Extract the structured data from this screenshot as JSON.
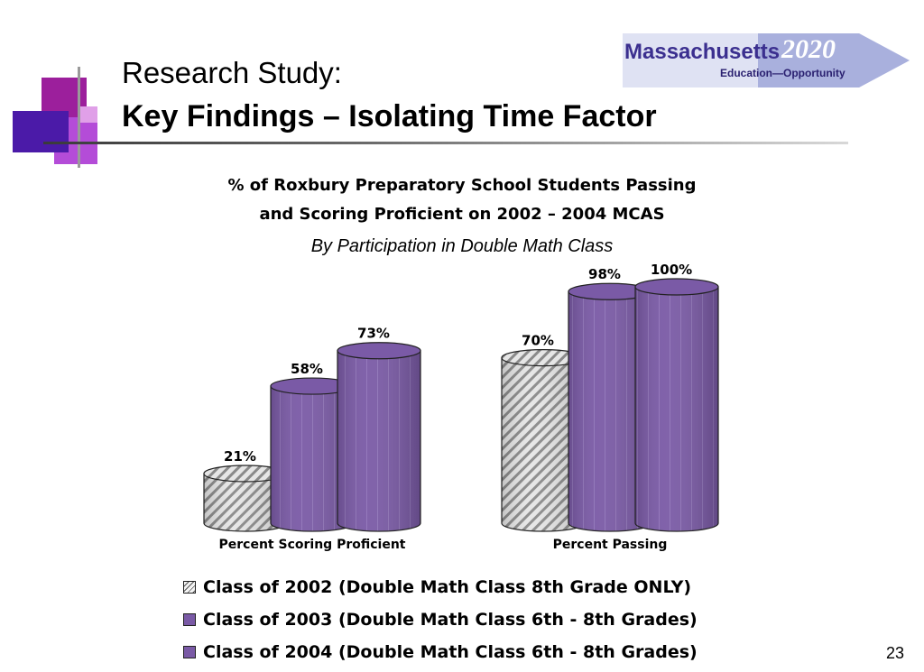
{
  "slide": {
    "title_line1": "Research Study:",
    "title_line2": "Key Findings – Isolating Time Factor",
    "page_number": "23"
  },
  "logo": {
    "name": "Massachusetts",
    "year": "2020",
    "tagline": "Education—Opportunity"
  },
  "chart_data": {
    "type": "bar",
    "title_line1": "% of Roxbury Preparatory School Students Passing",
    "title_line2": "and Scoring Proficient on 2002 – 2004 MCAS",
    "subtitle": "By Participation in Double Math Class",
    "categories": [
      "Percent Scoring Proficient",
      "Percent Passing"
    ],
    "series": [
      {
        "name": "Class of 2002 (Double Math Class 8th Grade ONLY)",
        "values": [
          21,
          70
        ],
        "labels": [
          "21%",
          "70%"
        ],
        "pattern": "hatched",
        "color": "#c8c8c8"
      },
      {
        "name": "Class of 2003 (Double Math Class 6th - 8th Grades)",
        "values": [
          58,
          98
        ],
        "labels": [
          "58%",
          "98%"
        ],
        "pattern": "solid",
        "color": "#7a5aa6"
      },
      {
        "name": "Class of 2004 (Double Math Class 6th - 8th Grades)",
        "values": [
          73,
          100
        ],
        "labels": [
          "73%",
          "100%"
        ],
        "pattern": "solid",
        "color": "#7a5aa6"
      }
    ],
    "ylim": [
      0,
      100
    ],
    "xlabel": "",
    "ylabel": "",
    "grid": false,
    "legend_position": "bottom",
    "bar_style": "3d-cylinder"
  }
}
